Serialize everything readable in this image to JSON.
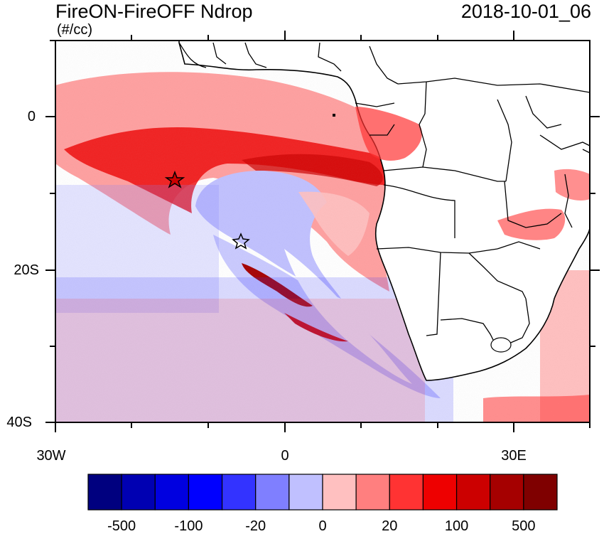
{
  "titles": {
    "left": "FireON-FireOFF Ndrop",
    "units": "(#/cc)",
    "right": "2018-10-01_06"
  },
  "axes": {
    "x_ticks": [
      "30W",
      "0",
      "30E"
    ],
    "y_ticks": [
      "0",
      "20S",
      "40S"
    ]
  },
  "map": {
    "region": "Southeast Atlantic and southern Africa",
    "lon_range": [
      -30,
      40
    ],
    "lat_range": [
      -40,
      10
    ],
    "markers": [
      {
        "name": "filled-star",
        "lon": -14.5,
        "lat": -8
      },
      {
        "name": "open-star",
        "lon": -5.7,
        "lat": -16
      }
    ]
  },
  "colorbar": {
    "colors": [
      "#00007f",
      "#0000b2",
      "#0000e0",
      "#0000ff",
      "#3333ff",
      "#7f7fff",
      "#c0c0ff",
      "#ffc0c0",
      "#ff7f7f",
      "#ff3333",
      "#ee0000",
      "#cc0000",
      "#a50000",
      "#7f0000"
    ],
    "labels": [
      "-500",
      "-100",
      "-20",
      "0",
      "20",
      "100",
      "500"
    ]
  },
  "chart_data": {
    "type": "heatmap",
    "title": "FireON-FireOFF Ndrop",
    "units": "(#/cc)",
    "valid_time": "2018-10-01_06",
    "x_ticks": [
      "30W",
      "0",
      "30E"
    ],
    "y_ticks": [
      "0",
      "20S",
      "40S"
    ],
    "levels": [
      -500,
      -100,
      -20,
      0,
      20,
      100,
      500
    ]
  }
}
